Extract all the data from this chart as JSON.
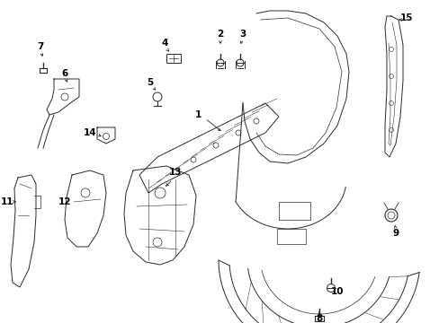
{
  "background_color": "#ffffff",
  "line_color": "#2a2a2a",
  "figsize": [
    4.89,
    3.6
  ],
  "dpi": 100,
  "label_fontsize": 7.5
}
